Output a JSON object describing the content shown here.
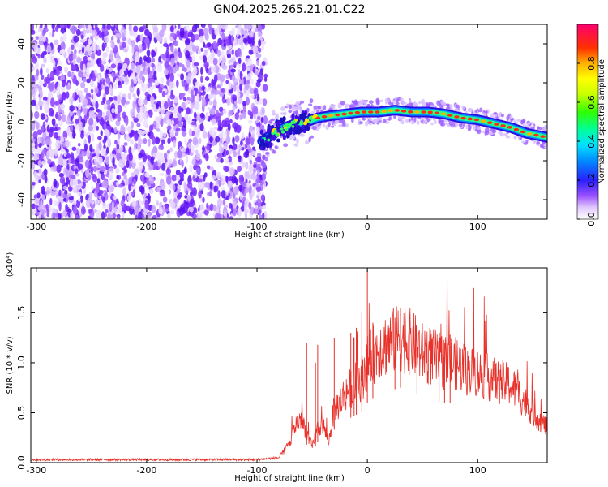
{
  "title": "GN04.2025.265.21.01.C22",
  "chart_data": [
    {
      "type": "heatmap",
      "xlabel": "Height of straight line (km)",
      "ylabel": "Frequency (Hz)",
      "xlim": [
        -305,
        163
      ],
      "ylim": [
        -50,
        50
      ],
      "x_ticks": [
        -300,
        -200,
        -100,
        0,
        100
      ],
      "y_ticks": [
        -40,
        -20,
        0,
        20,
        40
      ],
      "grid": false,
      "colorbar": {
        "label": "Normalized spectral amplitude",
        "ticks": [
          "0.0",
          "0.2",
          "0.4",
          "0.6",
          "0.8"
        ],
        "range": [
          0,
          1
        ]
      },
      "noise_region_x": [
        -305,
        -92
      ],
      "ridge_line": {
        "x": [
          -95,
          -85,
          -75,
          -65,
          -55,
          -45,
          -35,
          -20,
          -5,
          10,
          25,
          40,
          55,
          70,
          85,
          100,
          115,
          130,
          145,
          163
        ],
        "y": [
          -10,
          -6,
          -3,
          -1,
          0,
          2,
          3,
          4,
          5,
          5,
          6,
          5,
          5,
          4,
          2,
          1,
          -1,
          -3,
          -6,
          -8
        ]
      }
    },
    {
      "type": "line",
      "xlabel": "Height of straight line (km)",
      "ylabel": "SNR (10 * v/v)",
      "scale_note": "(x10⁴)",
      "xlim": [
        -305,
        163
      ],
      "ylim": [
        0,
        1.95
      ],
      "x_ticks": [
        -300,
        -200,
        -100,
        0,
        100
      ],
      "y_ticks": [
        "0.0",
        "0.5",
        "1.0",
        "1.5"
      ],
      "grid": false,
      "series": [
        {
          "color": "#e8312a",
          "envelope": {
            "x": [
              -305,
              -100,
              -80,
              -70,
              -65,
              -60,
              -55,
              -50,
              -45,
              -40,
              -35,
              -30,
              -25,
              -20,
              -15,
              -10,
              -5,
              0,
              10,
              20,
              30,
              40,
              50,
              60,
              70,
              80,
              90,
              100,
              110,
              120,
              130,
              140,
              150,
              163
            ],
            "y": [
              0.03,
              0.03,
              0.05,
              0.2,
              0.38,
              0.45,
              0.3,
              0.15,
              0.35,
              0.38,
              0.2,
              0.55,
              0.6,
              0.7,
              0.75,
              0.8,
              0.85,
              1.0,
              1.15,
              1.2,
              1.25,
              1.2,
              1.1,
              1.05,
              1.0,
              1.0,
              0.92,
              0.9,
              0.85,
              0.8,
              0.78,
              0.65,
              0.5,
              0.35
            ]
          },
          "spikes": [
            {
              "x": 0,
              "y": 1.92
            },
            {
              "x": 30,
              "y": 1.55
            },
            {
              "x": 25,
              "y": 1.45
            },
            {
              "x": -45,
              "y": 1.18
            },
            {
              "x": -55,
              "y": 1.2
            },
            {
              "x": -47,
              "y": 1.0
            },
            {
              "x": -30,
              "y": 1.25
            },
            {
              "x": -15,
              "y": 1.3
            },
            {
              "x": -10,
              "y": 1.35
            },
            {
              "x": -5,
              "y": 1.5
            },
            {
              "x": -12,
              "y": 1.25
            },
            {
              "x": 5,
              "y": 1.4
            },
            {
              "x": 45,
              "y": 1.38
            },
            {
              "x": 65,
              "y": 1.3
            },
            {
              "x": 70,
              "y": 1.2
            },
            {
              "x": 75,
              "y": 1.28
            }
          ]
        }
      ]
    }
  ]
}
